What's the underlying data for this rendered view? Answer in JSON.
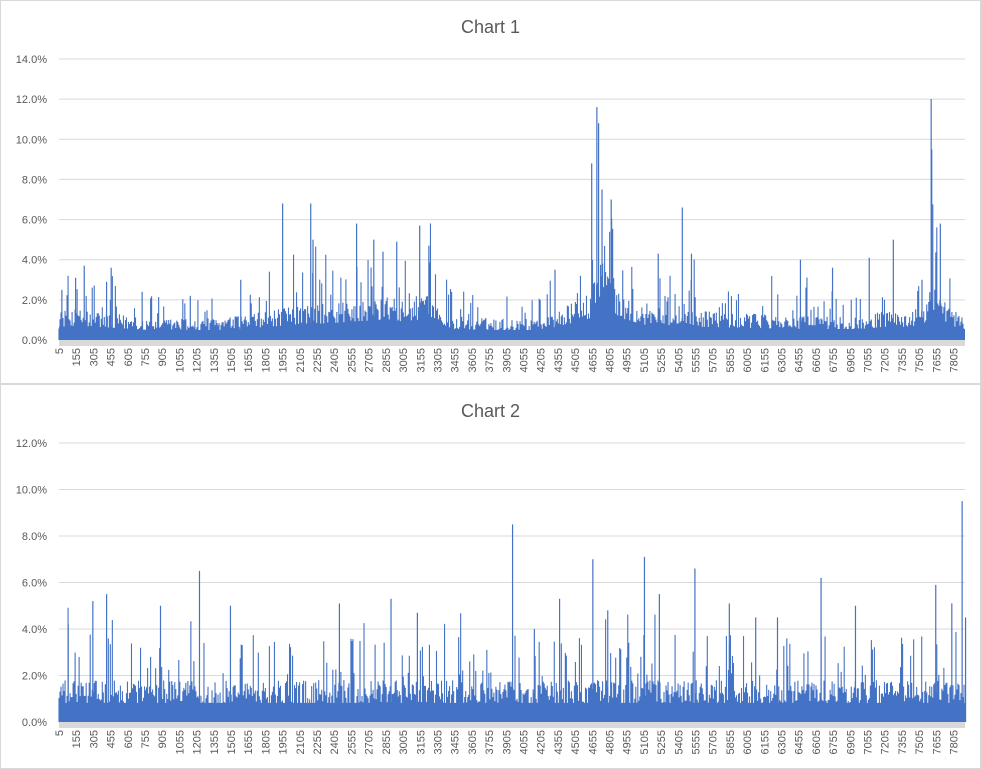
{
  "colors": {
    "series": "#4472c4",
    "grid": "#d9d9d9",
    "axis_band": "#d9d9d9",
    "text": "#595959"
  },
  "x_tick_labels": [
    "5",
    "155",
    "305",
    "455",
    "605",
    "755",
    "905",
    "1055",
    "1205",
    "1355",
    "1505",
    "1655",
    "1805",
    "1955",
    "2105",
    "2255",
    "2405",
    "2555",
    "2705",
    "2855",
    "3005",
    "3155",
    "3305",
    "3455",
    "3605",
    "3755",
    "3905",
    "4055",
    "4205",
    "4355",
    "4505",
    "4655",
    "4805",
    "4955",
    "5105",
    "5255",
    "5405",
    "5555",
    "5705",
    "5855",
    "6005",
    "6155",
    "6305",
    "6455",
    "6605",
    "6755",
    "6905",
    "7055",
    "7205",
    "7355",
    "7505",
    "7655",
    "7805"
  ],
  "chart_data": [
    {
      "type": "bar",
      "title": "Chart 1",
      "x_range": [
        5,
        7905
      ],
      "ylim": [
        0,
        0.14
      ],
      "yticks": [
        "0.0%",
        "2.0%",
        "4.0%",
        "6.0%",
        "8.0%",
        "10.0%",
        "12.0%",
        "14.0%"
      ],
      "grid": true,
      "legend": "none",
      "baseline_profile": [
        [
          5,
          0.012
        ],
        [
          150,
          0.013
        ],
        [
          300,
          0.012
        ],
        [
          500,
          0.011
        ],
        [
          800,
          0.009
        ],
        [
          1100,
          0.009
        ],
        [
          1400,
          0.009
        ],
        [
          1700,
          0.011
        ],
        [
          1950,
          0.013
        ],
        [
          2150,
          0.015
        ],
        [
          2350,
          0.015
        ],
        [
          2600,
          0.017
        ],
        [
          2800,
          0.018
        ],
        [
          3000,
          0.017
        ],
        [
          3200,
          0.019
        ],
        [
          3300,
          0.016
        ],
        [
          3450,
          0.01
        ],
        [
          3800,
          0.009
        ],
        [
          4100,
          0.009
        ],
        [
          4300,
          0.011
        ],
        [
          4500,
          0.016
        ],
        [
          4650,
          0.02
        ],
        [
          4720,
          0.04
        ],
        [
          4800,
          0.03
        ],
        [
          4900,
          0.02
        ],
        [
          5100,
          0.014
        ],
        [
          5300,
          0.013
        ],
        [
          5450,
          0.016
        ],
        [
          5600,
          0.012
        ],
        [
          6000,
          0.011
        ],
        [
          6500,
          0.01
        ],
        [
          7000,
          0.01
        ],
        [
          7200,
          0.012
        ],
        [
          7400,
          0.012
        ],
        [
          7550,
          0.014
        ],
        [
          7620,
          0.03
        ],
        [
          7700,
          0.015
        ],
        [
          7905,
          0.01
        ]
      ],
      "peaks": [
        [
          30,
          0.025
        ],
        [
          150,
          0.031
        ],
        [
          225,
          0.037
        ],
        [
          420,
          0.029
        ],
        [
          460,
          0.036
        ],
        [
          730,
          0.024
        ],
        [
          1150,
          0.022
        ],
        [
          1590,
          0.03
        ],
        [
          1955,
          0.068
        ],
        [
          2200,
          0.068
        ],
        [
          2220,
          0.05
        ],
        [
          2600,
          0.058
        ],
        [
          2750,
          0.05
        ],
        [
          2830,
          0.044
        ],
        [
          2950,
          0.049
        ],
        [
          3150,
          0.057
        ],
        [
          3230,
          0.047
        ],
        [
          4330,
          0.035
        ],
        [
          4650,
          0.088
        ],
        [
          4695,
          0.116
        ],
        [
          4710,
          0.108
        ],
        [
          4740,
          0.075
        ],
        [
          4820,
          0.07
        ],
        [
          5230,
          0.043
        ],
        [
          5440,
          0.066
        ],
        [
          5520,
          0.043
        ],
        [
          6470,
          0.04
        ],
        [
          6750,
          0.036
        ],
        [
          7070,
          0.041
        ],
        [
          7280,
          0.05
        ],
        [
          7530,
          0.03
        ],
        [
          7610,
          0.12
        ],
        [
          7615,
          0.095
        ],
        [
          7690,
          0.058
        ]
      ]
    },
    {
      "type": "bar",
      "title": "Chart 2",
      "x_range": [
        5,
        7905
      ],
      "ylim": [
        0,
        0.12
      ],
      "yticks": [
        "0.0%",
        "2.0%",
        "4.0%",
        "6.0%",
        "8.0%",
        "10.0%",
        "12.0%"
      ],
      "grid": true,
      "legend": "none",
      "baseline_profile": [
        [
          5,
          0.015
        ],
        [
          7905,
          0.015
        ]
      ],
      "peaks": [
        [
          85,
          0.042
        ],
        [
          300,
          0.052
        ],
        [
          420,
          0.055
        ],
        [
          890,
          0.05
        ],
        [
          1230,
          0.065
        ],
        [
          1500,
          0.05
        ],
        [
          2450,
          0.051
        ],
        [
          2900,
          0.053
        ],
        [
          3130,
          0.047
        ],
        [
          3960,
          0.085
        ],
        [
          4150,
          0.04
        ],
        [
          4370,
          0.053
        ],
        [
          4660,
          0.07
        ],
        [
          4790,
          0.048
        ],
        [
          5110,
          0.071
        ],
        [
          5240,
          0.055
        ],
        [
          5550,
          0.066
        ],
        [
          5850,
          0.051
        ],
        [
          6080,
          0.045
        ],
        [
          6270,
          0.045
        ],
        [
          6650,
          0.062
        ],
        [
          6950,
          0.05
        ],
        [
          7650,
          0.059
        ],
        [
          7790,
          0.051
        ],
        [
          7880,
          0.095
        ],
        [
          7910,
          0.045
        ]
      ]
    }
  ]
}
